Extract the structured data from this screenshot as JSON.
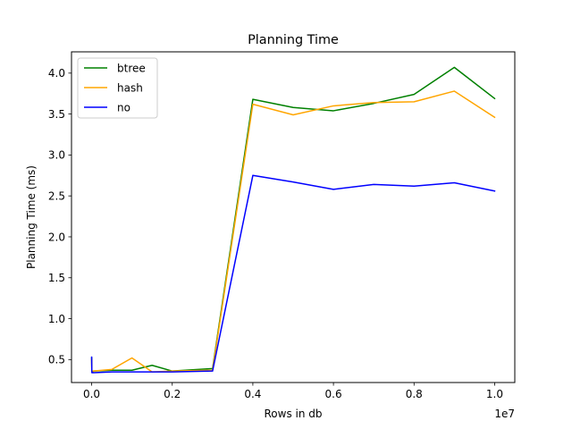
{
  "chart_data": {
    "type": "line",
    "title": "Planning Time",
    "xlabel": "Rows in db",
    "ylabel": "Planning Time (ms)",
    "x_offset_label": "1e7",
    "xlim": [
      -500000,
      10500000
    ],
    "ylim": [
      0.22,
      4.26
    ],
    "x_ticks": [
      0,
      2000000,
      4000000,
      6000000,
      8000000,
      10000000
    ],
    "x_tick_labels": [
      "0.0",
      "0.2",
      "0.4",
      "0.6",
      "0.8",
      "1.0"
    ],
    "y_ticks": [
      0.5,
      1.0,
      1.5,
      2.0,
      2.5,
      3.0,
      3.5,
      4.0
    ],
    "y_tick_labels": [
      "0.5",
      "1.0",
      "1.5",
      "2.0",
      "2.5",
      "3.0",
      "3.5",
      "4.0"
    ],
    "grid": false,
    "legend_position": "top-left",
    "x": [
      0,
      5000,
      10000,
      20000,
      50000,
      500000,
      1000000,
      1500000,
      2000000,
      3000000,
      4000000,
      5000000,
      6000000,
      7000000,
      8000000,
      9000000,
      10000000
    ],
    "series": [
      {
        "name": "btree",
        "color": "#008000",
        "values": [
          0.52,
          0.36,
          0.36,
          0.35,
          0.36,
          0.37,
          0.37,
          0.43,
          0.36,
          0.39,
          3.68,
          3.58,
          3.54,
          3.63,
          3.74,
          4.07,
          3.69
        ]
      },
      {
        "name": "hash",
        "color": "#ffa500",
        "values": [
          0.5,
          0.36,
          0.36,
          0.36,
          0.36,
          0.38,
          0.52,
          0.35,
          0.36,
          0.37,
          3.62,
          3.49,
          3.6,
          3.64,
          3.65,
          3.78,
          3.46
        ]
      },
      {
        "name": "no",
        "color": "#0000ff",
        "values": [
          0.53,
          0.34,
          0.34,
          0.34,
          0.34,
          0.35,
          0.35,
          0.35,
          0.35,
          0.36,
          2.75,
          2.67,
          2.58,
          2.64,
          2.62,
          2.66,
          2.56
        ]
      }
    ]
  }
}
